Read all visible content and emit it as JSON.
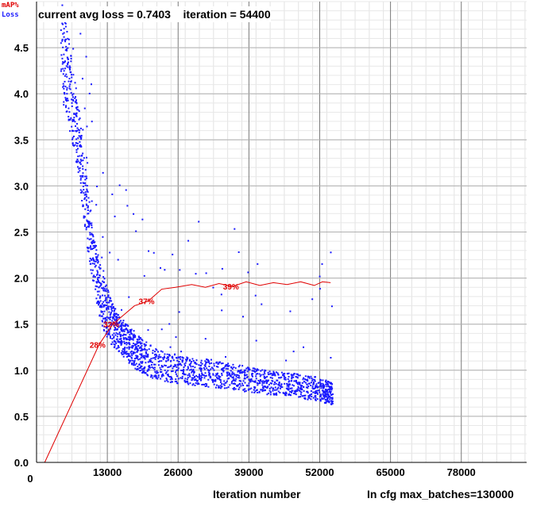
{
  "status": {
    "text": "current avg loss = 0.7403    iteration = 54400"
  },
  "legend": {
    "map_label": "mAP%",
    "loss_label": "Loss",
    "map_color": "#e00000",
    "loss_color": "#1a1aff"
  },
  "footer": {
    "xlabel": "Iteration number",
    "max_batches": "In cfg max_batches=130000"
  },
  "chart_data": {
    "type": "scatter",
    "title": "",
    "xlabel": "Iteration number",
    "ylabel": "",
    "xlim": [
      0,
      90000
    ],
    "ylim": [
      0,
      5
    ],
    "x_ticks": [
      13000,
      26000,
      39000,
      52000,
      65000,
      78000
    ],
    "x_tick_labels": [
      "13000",
      "26000",
      "39000",
      "52000",
      "65000",
      "78000"
    ],
    "x_origin_label": "0",
    "y_ticks": [
      0,
      0.5,
      1,
      1.5,
      2,
      2.5,
      3,
      3.5,
      4,
      4.5
    ],
    "y_tick_labels": [
      "0.0",
      "0.5",
      "1.0",
      "1.5",
      "2.0",
      "2.5",
      "3.0",
      "3.5",
      "4.0",
      "4.5"
    ],
    "grid": true,
    "series": [
      {
        "name": "Loss",
        "kind": "points",
        "color": "#1a1aff",
        "x": [
          4500,
          5500,
          6500,
          7500,
          8500,
          9500,
          10500,
          11500,
          12500,
          13500,
          14500,
          15500,
          16500,
          17500,
          18500,
          19500,
          21000,
          23000,
          25000,
          27000,
          29000,
          31000,
          33000,
          35000,
          37000,
          39000,
          41000,
          43000,
          45000,
          47000,
          49000,
          51000,
          52500,
          53500,
          54400
        ],
        "y": [
          4.55,
          4.3,
          3.9,
          3.6,
          3.1,
          2.6,
          2.2,
          1.9,
          1.7,
          1.55,
          1.45,
          1.38,
          1.3,
          1.25,
          1.2,
          1.15,
          1.1,
          1.05,
          1.02,
          1.0,
          0.98,
          0.97,
          0.96,
          0.94,
          0.92,
          0.9,
          0.88,
          0.86,
          0.85,
          0.84,
          0.82,
          0.8,
          0.78,
          0.76,
          0.74
        ],
        "band": [
          0.6,
          0.5,
          0.45,
          0.4,
          0.35,
          0.35,
          0.3,
          0.3,
          0.3,
          0.25,
          0.22,
          0.2,
          0.2,
          0.2,
          0.2,
          0.18,
          0.18,
          0.16,
          0.16,
          0.15,
          0.15,
          0.15,
          0.15,
          0.14,
          0.14,
          0.14,
          0.13,
          0.13,
          0.13,
          0.13,
          0.13,
          0.13,
          0.13,
          0.12,
          0.12
        ]
      },
      {
        "name": "mAP%",
        "kind": "line",
        "color": "#e00000",
        "x": [
          1500,
          11500,
          14000,
          16000,
          18000,
          20500,
          23000,
          25500,
          28500,
          31000,
          33500,
          36000,
          38500,
          41000,
          43500,
          46000,
          48500,
          51000,
          52500,
          54000
        ],
        "y": [
          0.0,
          1.28,
          1.5,
          1.6,
          1.7,
          1.75,
          1.88,
          1.9,
          1.93,
          1.9,
          1.94,
          1.91,
          1.96,
          1.92,
          1.95,
          1.93,
          1.96,
          1.92,
          1.96,
          1.95
        ],
        "labels": [
          {
            "text": "28%",
            "x": 11500,
            "y": 1.28
          },
          {
            "text": "32%",
            "x": 14000,
            "y": 1.5
          },
          {
            "text": "37%",
            "x": 20500,
            "y": 1.75
          },
          {
            "text": "39%",
            "x": 36000,
            "y": 1.91
          }
        ]
      }
    ]
  }
}
